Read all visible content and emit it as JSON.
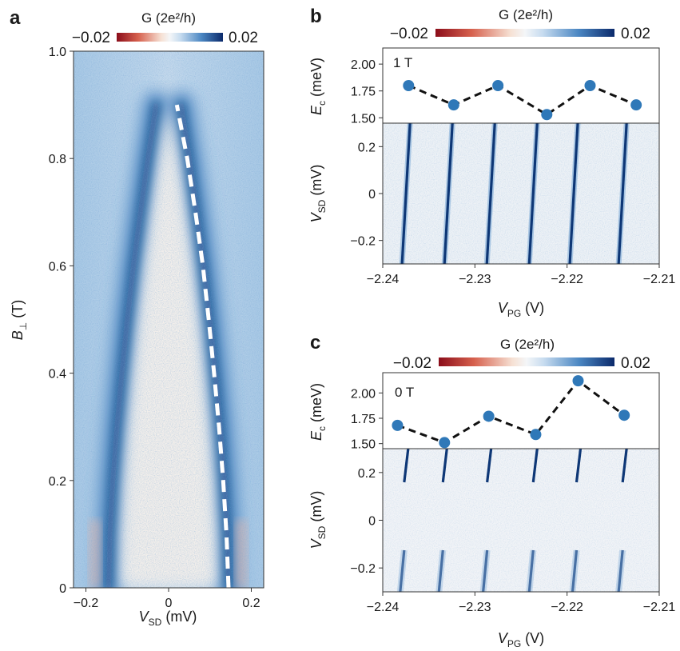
{
  "panels": {
    "a": {
      "letter": "a",
      "colorbar": {
        "label": "G (2e²/h)",
        "min": "−0.02",
        "max": "0.02",
        "range": [
          -0.02,
          0.02
        ]
      },
      "xlabel": "V_SD (mV)",
      "ylabel": "B⊥ (T)",
      "x_ticks": [
        "−0.2",
        "0",
        "0.2"
      ],
      "y_ticks": [
        "0",
        "0.2",
        "0.4",
        "0.6",
        "0.8",
        "1.0"
      ]
    },
    "b": {
      "letter": "b",
      "colorbar": {
        "label": "G (2e²/h)",
        "min": "−0.02",
        "max": "0.02",
        "range": [
          -0.02,
          0.02
        ]
      },
      "field_label": "1 T",
      "top_ylabel": "E_c (meV)",
      "top_y_ticks": [
        "1.50",
        "1.75",
        "2.00"
      ],
      "bottom_ylabel": "V_SD (mV)",
      "bottom_y_ticks": [
        "−0.2",
        "0",
        "0.2"
      ],
      "xlabel": "V_PG (V)",
      "x_ticks": [
        "−2.24",
        "−2.23",
        "−2.22",
        "−2.21"
      ]
    },
    "c": {
      "letter": "c",
      "colorbar": {
        "label": "G (2e²/h)",
        "min": "−0.02",
        "max": "0.02",
        "range": [
          -0.02,
          0.02
        ]
      },
      "field_label": "0 T",
      "top_ylabel": "E_c (meV)",
      "top_y_ticks": [
        "1.50",
        "1.75",
        "2.00"
      ],
      "bottom_ylabel": "V_SD (mV)",
      "bottom_y_ticks": [
        "−0.2",
        "0",
        "0.2"
      ],
      "xlabel": "V_PG (V)",
      "x_ticks": [
        "−2.24",
        "−2.23",
        "−2.22",
        "−2.21"
      ]
    }
  },
  "colors": {
    "negative": "#b2182b",
    "zero": "#f4f6f8",
    "positive": "#0b2a6b",
    "marker": "#2f78b8",
    "dash": "#111111",
    "guide": "#ffffff"
  },
  "chart_data": [
    {
      "id": "a",
      "type": "heatmap",
      "xlabel": "V_SD (mV)",
      "ylabel": "B⊥ (T)",
      "xlim": [
        -0.23,
        0.23
      ],
      "ylim": [
        0,
        1.0
      ],
      "colorbar_range": [
        -0.02,
        0.02
      ],
      "coherence_peaks": {
        "field_T": [
          0.0,
          0.1,
          0.2,
          0.3,
          0.4,
          0.5,
          0.6,
          0.7,
          0.8,
          0.9
        ],
        "left_peak_mV": [
          -0.145,
          -0.142,
          -0.135,
          -0.125,
          -0.113,
          -0.1,
          -0.085,
          -0.068,
          -0.05,
          -0.03
        ],
        "right_peak_mV": [
          0.145,
          0.142,
          0.135,
          0.125,
          0.113,
          0.1,
          0.085,
          0.068,
          0.05,
          0.03
        ]
      },
      "guide_curve": {
        "field_T": [
          0.0,
          0.1,
          0.2,
          0.3,
          0.4,
          0.5,
          0.6,
          0.7,
          0.8,
          0.9
        ],
        "vsd_mV": [
          0.145,
          0.14,
          0.132,
          0.122,
          0.11,
          0.097,
          0.083,
          0.065,
          0.045,
          0.02
        ]
      }
    },
    {
      "id": "b-top",
      "type": "line",
      "xlabel": "V_PG (V)",
      "ylabel": "E_c (meV)",
      "xlim": [
        -2.24,
        -2.21
      ],
      "ylim": [
        1.45,
        2.15
      ],
      "x": [
        -2.2372,
        -2.2323,
        -2.2275,
        -2.2222,
        -2.2175,
        -2.2125
      ],
      "y": [
        1.8,
        1.62,
        1.8,
        1.53,
        1.8,
        1.62
      ]
    },
    {
      "id": "b-bottom",
      "type": "heatmap",
      "xlabel": "V_PG (V)",
      "ylabel": "V_SD (mV)",
      "xlim": [
        -2.24,
        -2.21
      ],
      "ylim": [
        -0.3,
        0.3
      ],
      "colorbar_range": [
        -0.02,
        0.02
      ],
      "resonance_lines_VPG": [
        -2.2373,
        -2.2327,
        -2.2281,
        -2.2235,
        -2.2191,
        -2.2138
      ]
    },
    {
      "id": "c-top",
      "type": "line",
      "xlabel": "V_PG (V)",
      "ylabel": "E_c (meV)",
      "xlim": [
        -2.24,
        -2.21
      ],
      "ylim": [
        1.45,
        2.2
      ],
      "x": [
        -2.2384,
        -2.2333,
        -2.2285,
        -2.2234,
        -2.2188,
        -2.2138
      ],
      "y": [
        1.68,
        1.51,
        1.77,
        1.59,
        2.12,
        1.78
      ]
    },
    {
      "id": "c-bottom",
      "type": "heatmap",
      "xlabel": "V_PG (V)",
      "ylabel": "V_SD (mV)",
      "xlim": [
        -2.24,
        -2.21
      ],
      "ylim": [
        -0.3,
        0.3
      ],
      "colorbar_range": [
        -0.02,
        0.02
      ],
      "resonance_lines_VPG": [
        -2.2375,
        -2.2333,
        -2.2285,
        -2.2235,
        -2.2188,
        -2.2138
      ]
    }
  ]
}
